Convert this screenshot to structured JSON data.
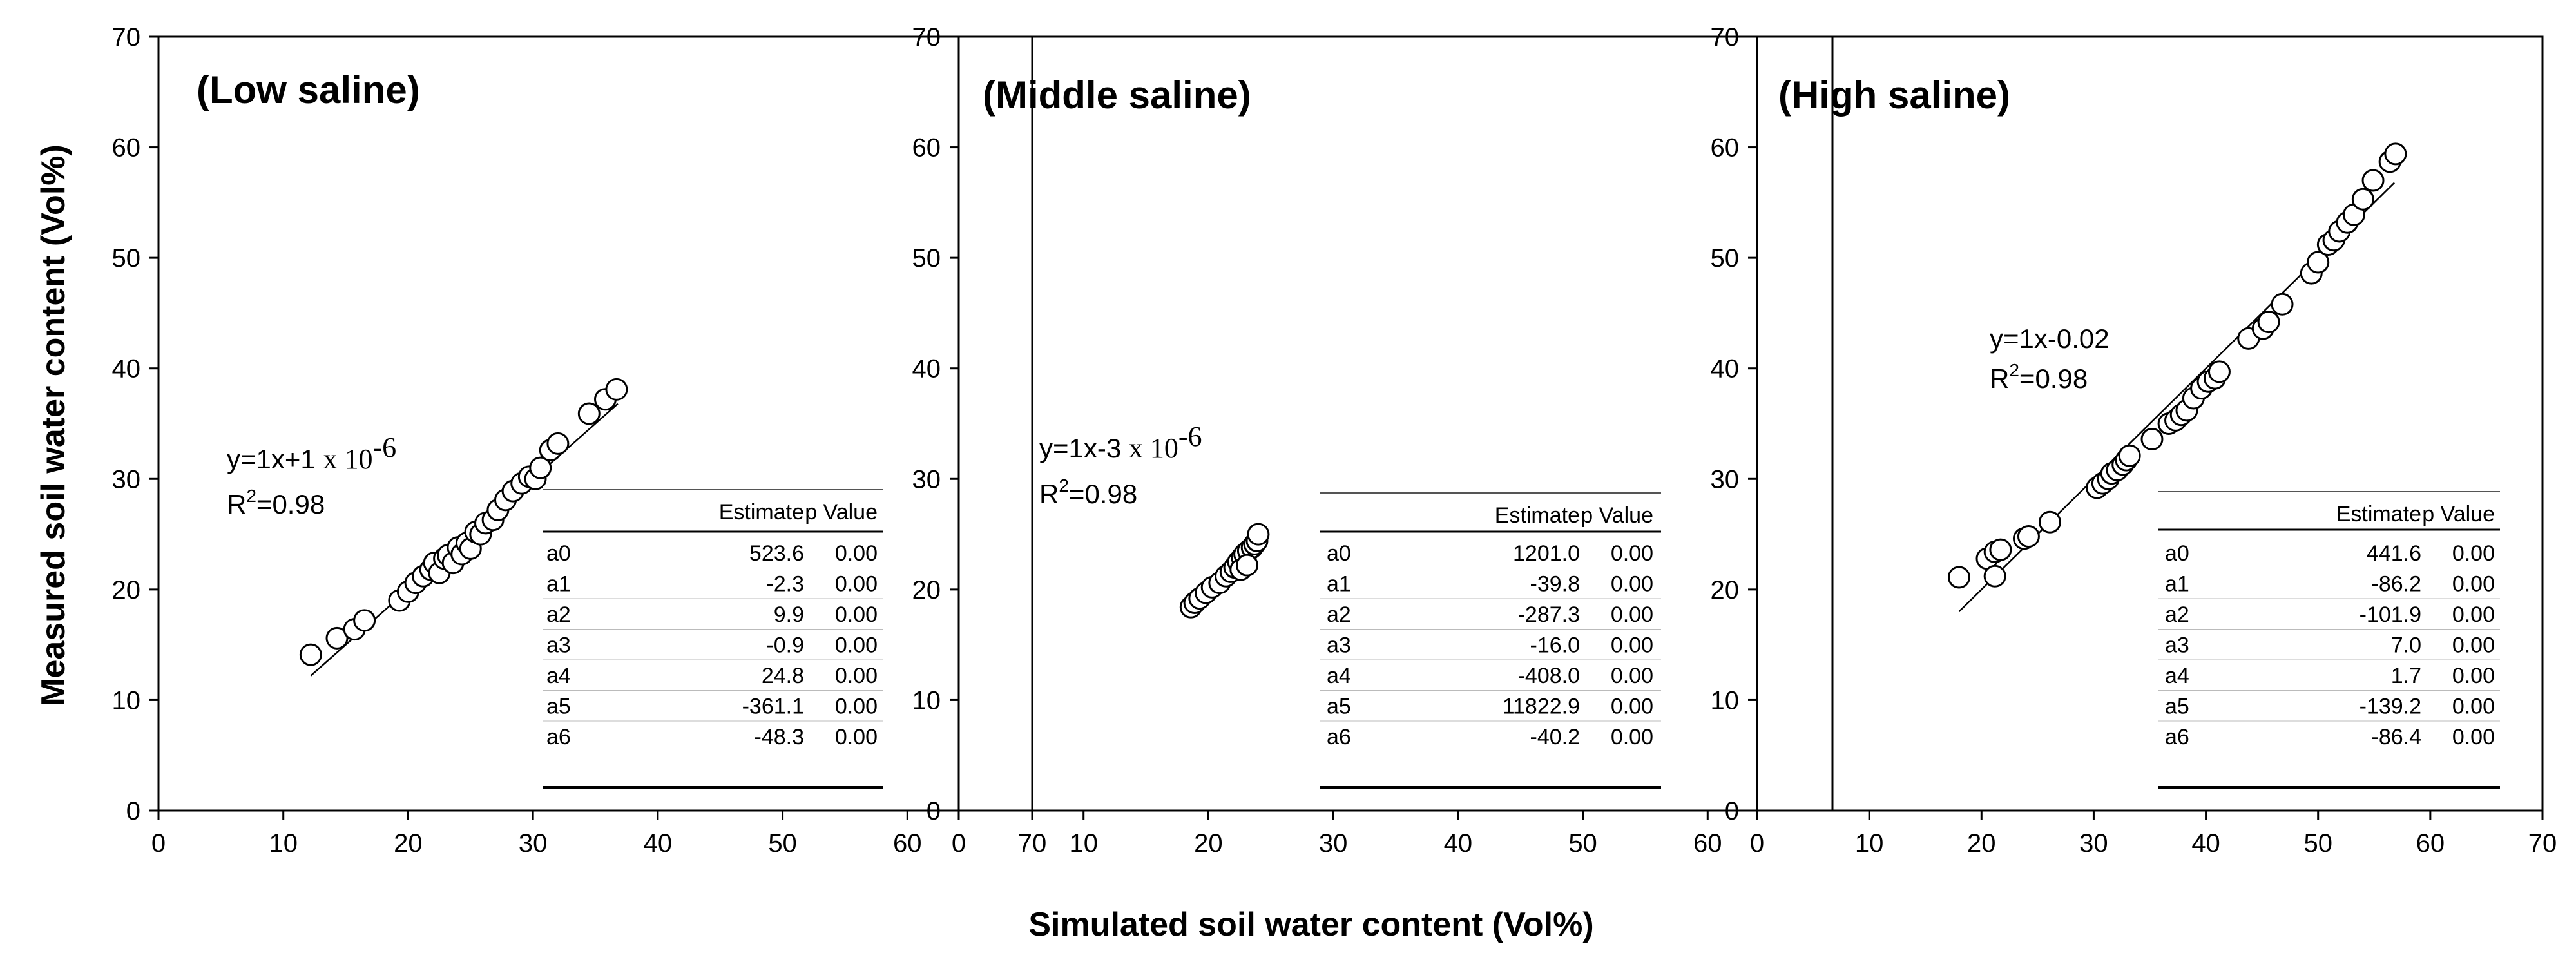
{
  "chart_data": [
    {
      "type": "scatter",
      "title": "(Low saline)",
      "xlim": [
        0,
        70
      ],
      "ylim": [
        0,
        70
      ],
      "xticks": [
        "0",
        "10",
        "20",
        "30",
        "40",
        "50",
        "60",
        "70"
      ],
      "yticks": [
        "0",
        "10",
        "20",
        "30",
        "40",
        "50",
        "60",
        "70"
      ],
      "fit": {
        "x": [
          12.2,
          36.8
        ],
        "y": [
          12.2,
          36.8
        ]
      },
      "equation": {
        "prefix": "y=1x+1 ",
        "sci": "x 10",
        "sup": "-6"
      },
      "r2": {
        "pre": "R",
        "sup": "2",
        "post": "=0.98"
      },
      "table": {
        "headers": [
          "",
          "Estimate",
          "p Value"
        ],
        "rows": [
          [
            "a0",
            "523.6",
            "0.00"
          ],
          [
            "a1",
            "-2.3",
            "0.00"
          ],
          [
            "a2",
            "9.9",
            "0.00"
          ],
          [
            "a3",
            "-0.9",
            "0.00"
          ],
          [
            "a4",
            "24.8",
            "0.00"
          ],
          [
            "a5",
            "-361.1",
            "0.00"
          ],
          [
            "a6",
            "-48.3",
            "0.00"
          ]
        ]
      },
      "points": [
        [
          12.2,
          14.1
        ],
        [
          14.3,
          15.6
        ],
        [
          15.7,
          16.4
        ],
        [
          16.5,
          17.2
        ],
        [
          19.3,
          19.0
        ],
        [
          20.0,
          19.8
        ],
        [
          20.6,
          20.6
        ],
        [
          21.2,
          21.2
        ],
        [
          21.8,
          21.8
        ],
        [
          22.1,
          22.4
        ],
        [
          22.5,
          21.5
        ],
        [
          22.9,
          22.8
        ],
        [
          23.2,
          23.1
        ],
        [
          23.6,
          22.4
        ],
        [
          24.0,
          23.8
        ],
        [
          24.3,
          23.2
        ],
        [
          24.7,
          24.2
        ],
        [
          25.0,
          23.7
        ],
        [
          25.4,
          25.2
        ],
        [
          25.8,
          25.0
        ],
        [
          26.2,
          26.0
        ],
        [
          26.8,
          26.3
        ],
        [
          27.2,
          27.2
        ],
        [
          27.8,
          28.1
        ],
        [
          28.4,
          28.9
        ],
        [
          29.1,
          29.6
        ],
        [
          29.7,
          30.2
        ],
        [
          30.2,
          30.0
        ],
        [
          30.6,
          31.0
        ],
        [
          31.4,
          32.6
        ],
        [
          32.0,
          33.2
        ],
        [
          34.5,
          35.9
        ],
        [
          35.8,
          37.2
        ],
        [
          36.7,
          38.1
        ]
      ]
    },
    {
      "type": "scatter",
      "title": "(Middle saline)",
      "xlim": [
        0,
        70
      ],
      "ylim": [
        0,
        70
      ],
      "xticks": [
        "0",
        "10",
        "20",
        "30",
        "40",
        "50",
        "60"
      ],
      "yticks": [
        "0",
        "10",
        "20",
        "30",
        "40",
        "50",
        "60",
        "70"
      ],
      "fit": {
        "x": [
          18.3,
          24.4
        ],
        "y": [
          18.3,
          24.4
        ]
      },
      "equation": {
        "prefix": "y=1x-3 ",
        "sci": "x 10",
        "sup": "-6"
      },
      "r2": {
        "pre": "R",
        "sup": "2",
        "post": "=0.98"
      },
      "table": {
        "headers": [
          "",
          "Estimate",
          "p Value"
        ],
        "rows": [
          [
            "a0",
            "1201.0",
            "0.00"
          ],
          [
            "a1",
            "-39.8",
            "0.00"
          ],
          [
            "a2",
            "-287.3",
            "0.00"
          ],
          [
            "a3",
            "-16.0",
            "0.00"
          ],
          [
            "a4",
            "-408.0",
            "0.00"
          ],
          [
            "a5",
            "11822.9",
            "0.00"
          ],
          [
            "a6",
            "-40.2",
            "0.00"
          ]
        ]
      },
      "points": [
        [
          18.6,
          18.4
        ],
        [
          18.9,
          18.8
        ],
        [
          19.3,
          19.2
        ],
        [
          19.8,
          19.7
        ],
        [
          20.3,
          20.2
        ],
        [
          20.9,
          20.6
        ],
        [
          21.4,
          21.2
        ],
        [
          21.8,
          21.6
        ],
        [
          22.1,
          22.0
        ],
        [
          22.4,
          22.5
        ],
        [
          22.7,
          22.9
        ],
        [
          22.9,
          23.2
        ],
        [
          23.2,
          23.5
        ],
        [
          23.5,
          23.8
        ],
        [
          23.7,
          24.1
        ],
        [
          23.9,
          24.4
        ],
        [
          24.0,
          25.0
        ],
        [
          22.6,
          21.8
        ],
        [
          23.1,
          22.2
        ]
      ]
    },
    {
      "type": "scatter",
      "title": "(High saline)",
      "xlim": [
        0,
        70
      ],
      "ylim": [
        0,
        70
      ],
      "xticks": [
        "0",
        "10",
        "20",
        "30",
        "40",
        "50",
        "60",
        "70"
      ],
      "yticks": [
        "0",
        "10",
        "20",
        "30",
        "40",
        "50",
        "60",
        "70"
      ],
      "fit": {
        "x": [
          18.0,
          56.8
        ],
        "y": [
          18.0,
          56.8
        ]
      },
      "equation": {
        "line1": "y=1x-0.02"
      },
      "r2": {
        "pre": "R",
        "sup": "2",
        "post": "=0.98"
      },
      "table": {
        "headers": [
          "",
          "Estimate",
          "p Value"
        ],
        "rows": [
          [
            "a0",
            "441.6",
            "0.00"
          ],
          [
            "a1",
            "-86.2",
            "0.00"
          ],
          [
            "a2",
            "-101.9",
            "0.00"
          ],
          [
            "a3",
            "7.0",
            "0.00"
          ],
          [
            "a4",
            "1.7",
            "0.00"
          ],
          [
            "a5",
            "-139.2",
            "0.00"
          ],
          [
            "a6",
            "-86.4",
            "0.00"
          ]
        ]
      },
      "points": [
        [
          18.0,
          21.1
        ],
        [
          20.5,
          22.8
        ],
        [
          21.2,
          23.4
        ],
        [
          21.7,
          23.6
        ],
        [
          21.2,
          21.2
        ],
        [
          23.8,
          24.6
        ],
        [
          24.2,
          24.8
        ],
        [
          26.1,
          26.1
        ],
        [
          30.3,
          29.2
        ],
        [
          30.8,
          29.6
        ],
        [
          31.3,
          30.0
        ],
        [
          31.6,
          30.5
        ],
        [
          32.1,
          30.8
        ],
        [
          32.6,
          31.3
        ],
        [
          32.9,
          31.7
        ],
        [
          33.2,
          32.1
        ],
        [
          35.2,
          33.6
        ],
        [
          36.7,
          35.0
        ],
        [
          37.3,
          35.3
        ],
        [
          37.8,
          35.8
        ],
        [
          38.3,
          36.2
        ],
        [
          38.9,
          37.3
        ],
        [
          39.6,
          38.2
        ],
        [
          40.2,
          38.8
        ],
        [
          40.8,
          39.1
        ],
        [
          41.2,
          39.7
        ],
        [
          43.8,
          42.7
        ],
        [
          45.1,
          43.6
        ],
        [
          45.6,
          44.2
        ],
        [
          46.8,
          45.8
        ],
        [
          49.4,
          48.6
        ],
        [
          50.0,
          49.6
        ],
        [
          50.9,
          51.2
        ],
        [
          51.4,
          51.6
        ],
        [
          51.9,
          52.4
        ],
        [
          52.6,
          53.2
        ],
        [
          53.2,
          53.9
        ],
        [
          54.0,
          55.3
        ],
        [
          54.9,
          57.0
        ],
        [
          56.4,
          58.7
        ],
        [
          56.9,
          59.4
        ]
      ]
    }
  ],
  "y_axis_title": "Measured soil water content (Vol%)",
  "x_axis_title": "Simulated soil water content (Vol%)"
}
